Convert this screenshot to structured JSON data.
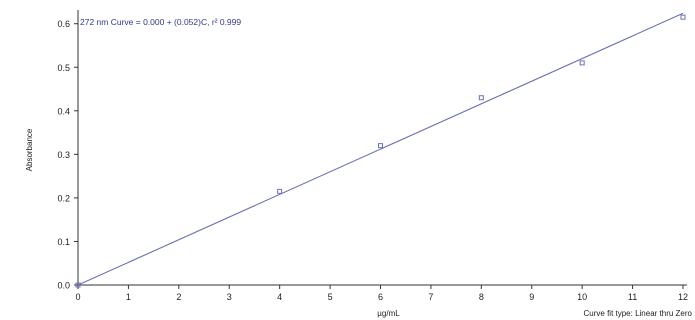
{
  "chart_data": {
    "type": "scatter",
    "title": "272 nm Curve = 0.000 + (0.052)C,  r² 0.999",
    "xlabel": "µg/mL",
    "ylabel": "Absorbance",
    "xlim": [
      0,
      12
    ],
    "ylim": [
      0,
      0.62
    ],
    "x_ticks": [
      0,
      1,
      2,
      3,
      4,
      5,
      6,
      7,
      8,
      9,
      10,
      11,
      12
    ],
    "y_ticks": [
      0.0,
      0.1,
      0.2,
      0.3,
      0.4,
      0.5,
      0.6
    ],
    "y_tick_labels": [
      "0.0",
      "0.1",
      "0.2",
      "0.3",
      "0.4",
      "0.5",
      "0.6"
    ],
    "grid": false,
    "series": [
      {
        "x": [
          0,
          4,
          6,
          8,
          10,
          12
        ],
        "y": [
          0.0,
          0.215,
          0.32,
          0.43,
          0.51,
          0.615
        ]
      }
    ],
    "fit_line": {
      "intercept": 0.0,
      "slope": 0.052,
      "x_range": [
        0,
        12
      ]
    },
    "annotation": "Curve fit type: Linear thru Zero",
    "colors": {
      "line": "#6a6fb5",
      "marker": "#6a6fb5",
      "axis": "#333333",
      "text": "#222222",
      "title": "#2c3a8c"
    }
  }
}
